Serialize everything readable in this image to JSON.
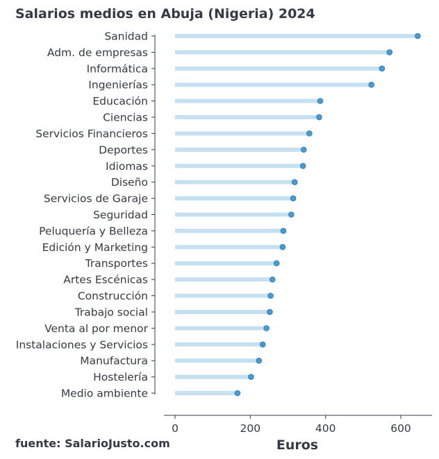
{
  "chart_data": {
    "type": "lollipop",
    "title": "Salarios medios en Abuja (Nigeria) 2024",
    "xlabel": "Euros",
    "ylabel": "",
    "xlim": [
      -30,
      680
    ],
    "xticks": [
      0,
      200,
      400,
      600
    ],
    "grid": false,
    "source": "fuente: SalarioJusto.com",
    "colors": {
      "stem": "#c5e0f0",
      "dot": "#4a9bd1",
      "text": "#343a44"
    },
    "categories": [
      "Sanidad",
      "Adm. de empresas",
      "Informática",
      "Ingenierías",
      "Educación",
      "Ciencias",
      "Servicios Financieros",
      "Deportes",
      "Idiomas",
      "Diseño",
      "Servicios de Garaje",
      "Seguridad",
      "Peluquería y Belleza",
      "Edición y Marketing",
      "Transportes",
      "Artes Escénicas",
      "Construcción",
      "Trabajo social",
      "Venta al por menor",
      "Instalaciones y Servicios",
      "Manufactura",
      "Hostelería",
      "Medio ambiente"
    ],
    "values": [
      645,
      570,
      550,
      522,
      386,
      383,
      357,
      342,
      340,
      318,
      314,
      309,
      288,
      286,
      270,
      259,
      254,
      252,
      243,
      233,
      223,
      202,
      166
    ]
  }
}
